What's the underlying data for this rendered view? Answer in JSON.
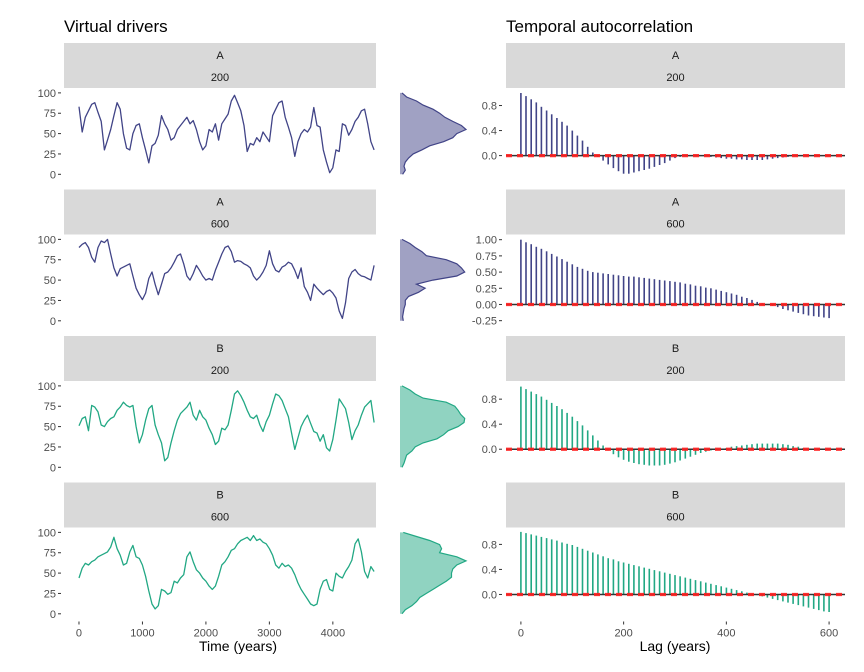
{
  "titles": {
    "left": "Virtual drivers",
    "right": "Temporal autocorrelation"
  },
  "colors": {
    "A": "#414487",
    "B": "#22A884",
    "strip": "#D9D9D9",
    "zero_line": "#333333",
    "significance": "#FF2020"
  },
  "chart_data": {
    "type": "line",
    "xlabel_left": "Time (years)",
    "xlabel_right": "Lag (years)",
    "x_ticks_left": [
      0,
      1000,
      2000,
      3000,
      4000
    ],
    "x_ticks_right": [
      0,
      200,
      400,
      600
    ],
    "driver_y_ticks": [
      0,
      25,
      50,
      75,
      100
    ],
    "driver_ylim": [
      -7,
      106
    ],
    "time_xlim": [
      -236,
      4680
    ],
    "lag_xlim": [
      -29,
      631
    ],
    "grid": false,
    "time": [
      0,
      50,
      100,
      150,
      200,
      250,
      300,
      350,
      400,
      450,
      500,
      550,
      600,
      650,
      700,
      750,
      800,
      850,
      900,
      950,
      1000,
      1050,
      1100,
      1150,
      1200,
      1250,
      1300,
      1350,
      1400,
      1450,
      1500,
      1550,
      1600,
      1650,
      1700,
      1750,
      1800,
      1850,
      1900,
      1950,
      2000,
      2050,
      2100,
      2150,
      2200,
      2250,
      2300,
      2350,
      2400,
      2450,
      2500,
      2550,
      2600,
      2650,
      2700,
      2750,
      2800,
      2850,
      2900,
      2950,
      3000,
      3050,
      3100,
      3150,
      3200,
      3250,
      3300,
      3350,
      3400,
      3450,
      3500,
      3550,
      3600,
      3650,
      3700,
      3750,
      3800,
      3850,
      3900,
      3950,
      4000,
      4050,
      4100,
      4150,
      4200,
      4250,
      4300,
      4350,
      4400,
      4450,
      4500,
      4550,
      4600,
      4650
    ],
    "lag": [
      0,
      10,
      20,
      30,
      40,
      50,
      60,
      70,
      80,
      90,
      100,
      110,
      120,
      130,
      140,
      150,
      160,
      170,
      180,
      190,
      200,
      210,
      220,
      230,
      240,
      250,
      260,
      270,
      280,
      290,
      300,
      310,
      320,
      330,
      340,
      350,
      360,
      370,
      380,
      390,
      400,
      410,
      420,
      430,
      440,
      450,
      460,
      470,
      480,
      490,
      500,
      510,
      520,
      530,
      540,
      550,
      560,
      570,
      580,
      590,
      600
    ],
    "density_levels": [
      0,
      5,
      10,
      15,
      20,
      25,
      30,
      35,
      40,
      45,
      50,
      55,
      60,
      65,
      70,
      75,
      80,
      85,
      90,
      95,
      100
    ],
    "significance_level": 0,
    "panels": [
      {
        "strip": [
          "A",
          "200"
        ],
        "group": "A",
        "driver": [
          83,
          52,
          70,
          78,
          86,
          88,
          76,
          65,
          30,
          42,
          55,
          72,
          88,
          80,
          50,
          32,
          30,
          50,
          60,
          62,
          45,
          30,
          14,
          35,
          38,
          48,
          72,
          62,
          55,
          42,
          45,
          55,
          60,
          65,
          70,
          62,
          66,
          55,
          40,
          30,
          35,
          55,
          52,
          62,
          42,
          62,
          68,
          74,
          90,
          97,
          88,
          78,
          60,
          28,
          38,
          36,
          45,
          40,
          52,
          46,
          40,
          72,
          80,
          88,
          90,
          70,
          58,
          45,
          22,
          40,
          50,
          55,
          52,
          58,
          82,
          60,
          58,
          30,
          15,
          2,
          8,
          30,
          28,
          62,
          60,
          48,
          55,
          65,
          70,
          78,
          80,
          62,
          40,
          30
        ],
        "density": [
          0.04,
          0.08,
          0.06,
          0.08,
          0.13,
          0.2,
          0.33,
          0.45,
          0.66,
          0.8,
          0.86,
          1.0,
          0.93,
          0.8,
          0.68,
          0.6,
          0.5,
          0.35,
          0.25,
          0.1,
          0.03
        ],
        "acf": [
          1,
          0.95,
          0.9,
          0.85,
          0.78,
          0.72,
          0.66,
          0.6,
          0.54,
          0.48,
          0.4,
          0.32,
          0.24,
          0.14,
          0.05,
          -0.02,
          -0.08,
          -0.14,
          -0.2,
          -0.25,
          -0.29,
          -0.29,
          -0.27,
          -0.25,
          -0.23,
          -0.21,
          -0.18,
          -0.15,
          -0.12,
          -0.08,
          -0.04,
          -0.02,
          -0.01,
          0,
          0,
          0,
          -0.01,
          -0.02,
          -0.03,
          -0.04,
          -0.05,
          -0.05,
          -0.06,
          -0.06,
          -0.07,
          -0.07,
          -0.07,
          -0.07,
          -0.06,
          -0.05,
          -0.04,
          -0.03,
          -0.02,
          -0.01,
          0,
          0,
          0,
          0,
          0,
          0,
          0
        ],
        "acf_y_ticks": [
          "0.0",
          "0.4",
          "0.8"
        ],
        "acf_y_tick_values": [
          0,
          0.4,
          0.8
        ],
        "acf_ylim": [
          -0.39,
          1.08
        ]
      },
      {
        "strip": [
          "A",
          "600"
        ],
        "group": "A",
        "driver": [
          90,
          94,
          96,
          90,
          78,
          72,
          90,
          98,
          96,
          100,
          82,
          65,
          55,
          64,
          66,
          68,
          70,
          55,
          40,
          32,
          26,
          34,
          52,
          60,
          45,
          32,
          45,
          58,
          60,
          65,
          72,
          80,
          82,
          70,
          55,
          50,
          58,
          68,
          62,
          55,
          50,
          52,
          50,
          62,
          72,
          82,
          90,
          92,
          85,
          72,
          74,
          73,
          70,
          68,
          65,
          55,
          50,
          54,
          60,
          68,
          86,
          70,
          62,
          60,
          66,
          68,
          72,
          70,
          62,
          52,
          65,
          42,
          35,
          25,
          45,
          40,
          36,
          32,
          36,
          38,
          34,
          28,
          12,
          3,
          22,
          52,
          60,
          63,
          58,
          55,
          54,
          52,
          50,
          68
        ],
        "density": [
          0.05,
          0.04,
          0.05,
          0.06,
          0.08,
          0.08,
          0.13,
          0.28,
          0.38,
          0.25,
          0.5,
          0.86,
          0.98,
          0.93,
          0.86,
          0.7,
          0.4,
          0.33,
          0.23,
          0.15,
          0.03
        ],
        "acf": [
          1,
          0.96,
          0.93,
          0.89,
          0.86,
          0.82,
          0.78,
          0.74,
          0.7,
          0.66,
          0.62,
          0.58,
          0.55,
          0.52,
          0.5,
          0.49,
          0.48,
          0.47,
          0.46,
          0.45,
          0.44,
          0.43,
          0.43,
          0.42,
          0.41,
          0.4,
          0.39,
          0.38,
          0.37,
          0.36,
          0.35,
          0.34,
          0.32,
          0.31,
          0.29,
          0.28,
          0.26,
          0.25,
          0.23,
          0.21,
          0.19,
          0.17,
          0.15,
          0.12,
          0.1,
          0.07,
          0.04,
          0.02,
          0,
          -0.02,
          -0.04,
          -0.07,
          -0.09,
          -0.11,
          -0.13,
          -0.15,
          -0.17,
          -0.18,
          -0.19,
          -0.2,
          -0.21
        ],
        "acf_y_ticks": [
          "-0.25",
          "0.00",
          "0.25",
          "0.50",
          "0.75",
          "1.00"
        ],
        "acf_y_tick_values": [
          -0.25,
          0,
          0.25,
          0.5,
          0.75,
          1.0
        ],
        "acf_ylim": [
          -0.34,
          1.08
        ]
      },
      {
        "strip": [
          "B",
          "200"
        ],
        "group": "B",
        "driver": [
          51,
          60,
          62,
          45,
          76,
          74,
          68,
          52,
          50,
          56,
          60,
          62,
          70,
          74,
          80,
          76,
          74,
          76,
          50,
          30,
          40,
          58,
          72,
          76,
          52,
          40,
          30,
          8,
          12,
          30,
          45,
          58,
          66,
          70,
          74,
          80,
          64,
          58,
          70,
          62,
          58,
          48,
          40,
          28,
          32,
          48,
          46,
          52,
          70,
          90,
          94,
          88,
          80,
          70,
          62,
          60,
          64,
          52,
          44,
          56,
          64,
          78,
          90,
          88,
          82,
          72,
          62,
          42,
          22,
          36,
          50,
          58,
          64,
          54,
          44,
          42,
          32,
          40,
          24,
          20,
          34,
          58,
          84,
          78,
          72,
          55,
          34,
          45,
          52,
          64,
          74,
          78,
          82,
          55
        ],
        "density": [
          0.03,
          0.06,
          0.08,
          0.1,
          0.18,
          0.23,
          0.35,
          0.56,
          0.66,
          0.73,
          0.88,
          0.97,
          0.98,
          0.92,
          0.88,
          0.83,
          0.7,
          0.35,
          0.23,
          0.15,
          0.03
        ],
        "acf": [
          1,
          0.96,
          0.92,
          0.88,
          0.84,
          0.79,
          0.74,
          0.69,
          0.64,
          0.58,
          0.52,
          0.45,
          0.38,
          0.3,
          0.22,
          0.14,
          0.06,
          -0.02,
          -0.08,
          -0.13,
          -0.17,
          -0.2,
          -0.22,
          -0.24,
          -0.25,
          -0.26,
          -0.26,
          -0.26,
          -0.25,
          -0.23,
          -0.21,
          -0.18,
          -0.15,
          -0.12,
          -0.09,
          -0.06,
          -0.04,
          -0.02,
          0,
          0.01,
          0.02,
          0.04,
          0.05,
          0.06,
          0.07,
          0.08,
          0.09,
          0.09,
          0.09,
          0.09,
          0.09,
          0.08,
          0.07,
          0.05,
          0.04,
          0.02,
          0.01,
          0,
          0,
          0,
          0
        ],
        "acf_y_ticks": [
          "0.0",
          "0.4",
          "0.8"
        ],
        "acf_y_tick_values": [
          0,
          0.4,
          0.8
        ],
        "acf_ylim": [
          -0.38,
          1.09
        ]
      },
      {
        "strip": [
          "B",
          "600"
        ],
        "group": "B",
        "driver": [
          44,
          56,
          62,
          60,
          64,
          66,
          70,
          72,
          74,
          76,
          82,
          94,
          80,
          72,
          60,
          62,
          76,
          84,
          70,
          68,
          60,
          46,
          28,
          12,
          6,
          10,
          30,
          28,
          24,
          26,
          40,
          38,
          44,
          48,
          70,
          76,
          64,
          54,
          50,
          44,
          40,
          34,
          30,
          34,
          46,
          60,
          64,
          70,
          78,
          80,
          86,
          90,
          92,
          94,
          90,
          96,
          90,
          92,
          88,
          86,
          80,
          72,
          60,
          56,
          62,
          58,
          60,
          56,
          48,
          38,
          30,
          24,
          18,
          12,
          10,
          12,
          30,
          40,
          42,
          30,
          28,
          50,
          46,
          44,
          52,
          58,
          66,
          86,
          92,
          76,
          52,
          44,
          58,
          52
        ],
        "density": [
          0.03,
          0.08,
          0.18,
          0.25,
          0.3,
          0.4,
          0.5,
          0.6,
          0.7,
          0.78,
          0.78,
          0.8,
          0.86,
          1.0,
          0.86,
          0.6,
          0.63,
          0.6,
          0.45,
          0.25,
          0.05
        ],
        "acf": [
          1,
          0.98,
          0.96,
          0.94,
          0.92,
          0.9,
          0.88,
          0.86,
          0.83,
          0.81,
          0.79,
          0.76,
          0.73,
          0.7,
          0.67,
          0.64,
          0.61,
          0.58,
          0.56,
          0.53,
          0.51,
          0.49,
          0.47,
          0.45,
          0.43,
          0.41,
          0.39,
          0.37,
          0.35,
          0.33,
          0.31,
          0.29,
          0.27,
          0.25,
          0.23,
          0.21,
          0.19,
          0.17,
          0.15,
          0.13,
          0.11,
          0.09,
          0.07,
          0.05,
          0.03,
          0.01,
          -0.01,
          -0.03,
          -0.05,
          -0.07,
          -0.09,
          -0.11,
          -0.13,
          -0.15,
          -0.17,
          -0.19,
          -0.21,
          -0.23,
          -0.25,
          -0.27,
          -0.28
        ],
        "acf_y_ticks": [
          "0.0",
          "0.4",
          "0.8"
        ],
        "acf_y_tick_values": [
          0,
          0.4,
          0.8
        ],
        "acf_ylim": [
          -0.4,
          1.07
        ]
      }
    ]
  }
}
